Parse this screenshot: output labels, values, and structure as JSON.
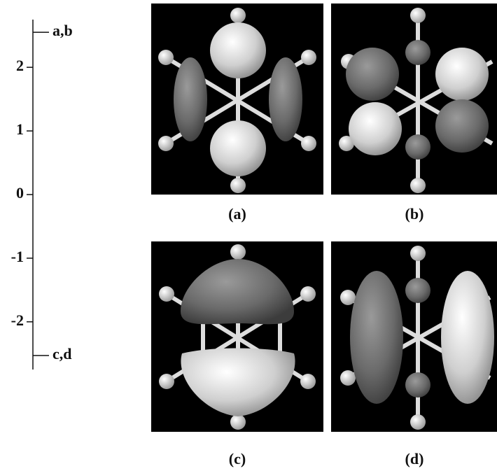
{
  "energy_axis": {
    "ylim": [
      -2.75,
      2.75
    ],
    "yticks": [
      -2,
      -1,
      0,
      1,
      2
    ],
    "levels": [
      {
        "label": "a,b",
        "value": 2.55
      },
      {
        "label": "c,d",
        "value": -2.53
      }
    ]
  },
  "panels": [
    {
      "label": "(a)"
    },
    {
      "label": "(b)"
    },
    {
      "label": "(c)"
    },
    {
      "label": "(d)"
    }
  ]
}
